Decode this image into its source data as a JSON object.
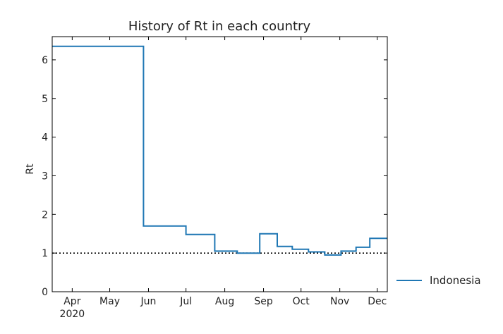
{
  "chart_data": {
    "type": "line",
    "title": "History of Rt in each country",
    "ylabel": "Rt",
    "ylim": [
      0,
      6.6
    ],
    "xlim": [
      "2020-03-16",
      "2020-12-09"
    ],
    "y_ticks": [
      0,
      1,
      2,
      3,
      4,
      5,
      6
    ],
    "x_ticks": [
      {
        "date": "2020-04-01",
        "label": "Apr",
        "sublabel": "2020"
      },
      {
        "date": "2020-05-01",
        "label": "May",
        "sublabel": ""
      },
      {
        "date": "2020-06-01",
        "label": "Jun",
        "sublabel": ""
      },
      {
        "date": "2020-07-01",
        "label": "Jul",
        "sublabel": ""
      },
      {
        "date": "2020-08-01",
        "label": "Aug",
        "sublabel": ""
      },
      {
        "date": "2020-09-01",
        "label": "Sep",
        "sublabel": ""
      },
      {
        "date": "2020-10-01",
        "label": "Oct",
        "sublabel": ""
      },
      {
        "date": "2020-11-01",
        "label": "Nov",
        "sublabel": ""
      },
      {
        "date": "2020-12-01",
        "label": "Dec",
        "sublabel": ""
      }
    ],
    "reference_line": {
      "y": 1,
      "style": "dotted",
      "color": "#000000"
    },
    "grid": false,
    "legend": {
      "placement": "outside-right",
      "entries": [
        "Indonesia"
      ]
    },
    "series": [
      {
        "name": "Indonesia",
        "color": "#1f77b4",
        "step": "post",
        "points": [
          {
            "x": "2020-03-16",
            "y": 6.35
          },
          {
            "x": "2020-05-28",
            "y": 1.7
          },
          {
            "x": "2020-07-01",
            "y": 1.48
          },
          {
            "x": "2020-07-24",
            "y": 1.05
          },
          {
            "x": "2020-08-11",
            "y": 1.0
          },
          {
            "x": "2020-08-29",
            "y": 1.5
          },
          {
            "x": "2020-09-12",
            "y": 1.17
          },
          {
            "x": "2020-09-24",
            "y": 1.1
          },
          {
            "x": "2020-10-07",
            "y": 1.03
          },
          {
            "x": "2020-10-20",
            "y": 0.95
          },
          {
            "x": "2020-11-02",
            "y": 1.05
          },
          {
            "x": "2020-11-14",
            "y": 1.15
          },
          {
            "x": "2020-11-25",
            "y": 1.38
          },
          {
            "x": "2020-12-09",
            "y": 1.38
          }
        ]
      }
    ]
  }
}
